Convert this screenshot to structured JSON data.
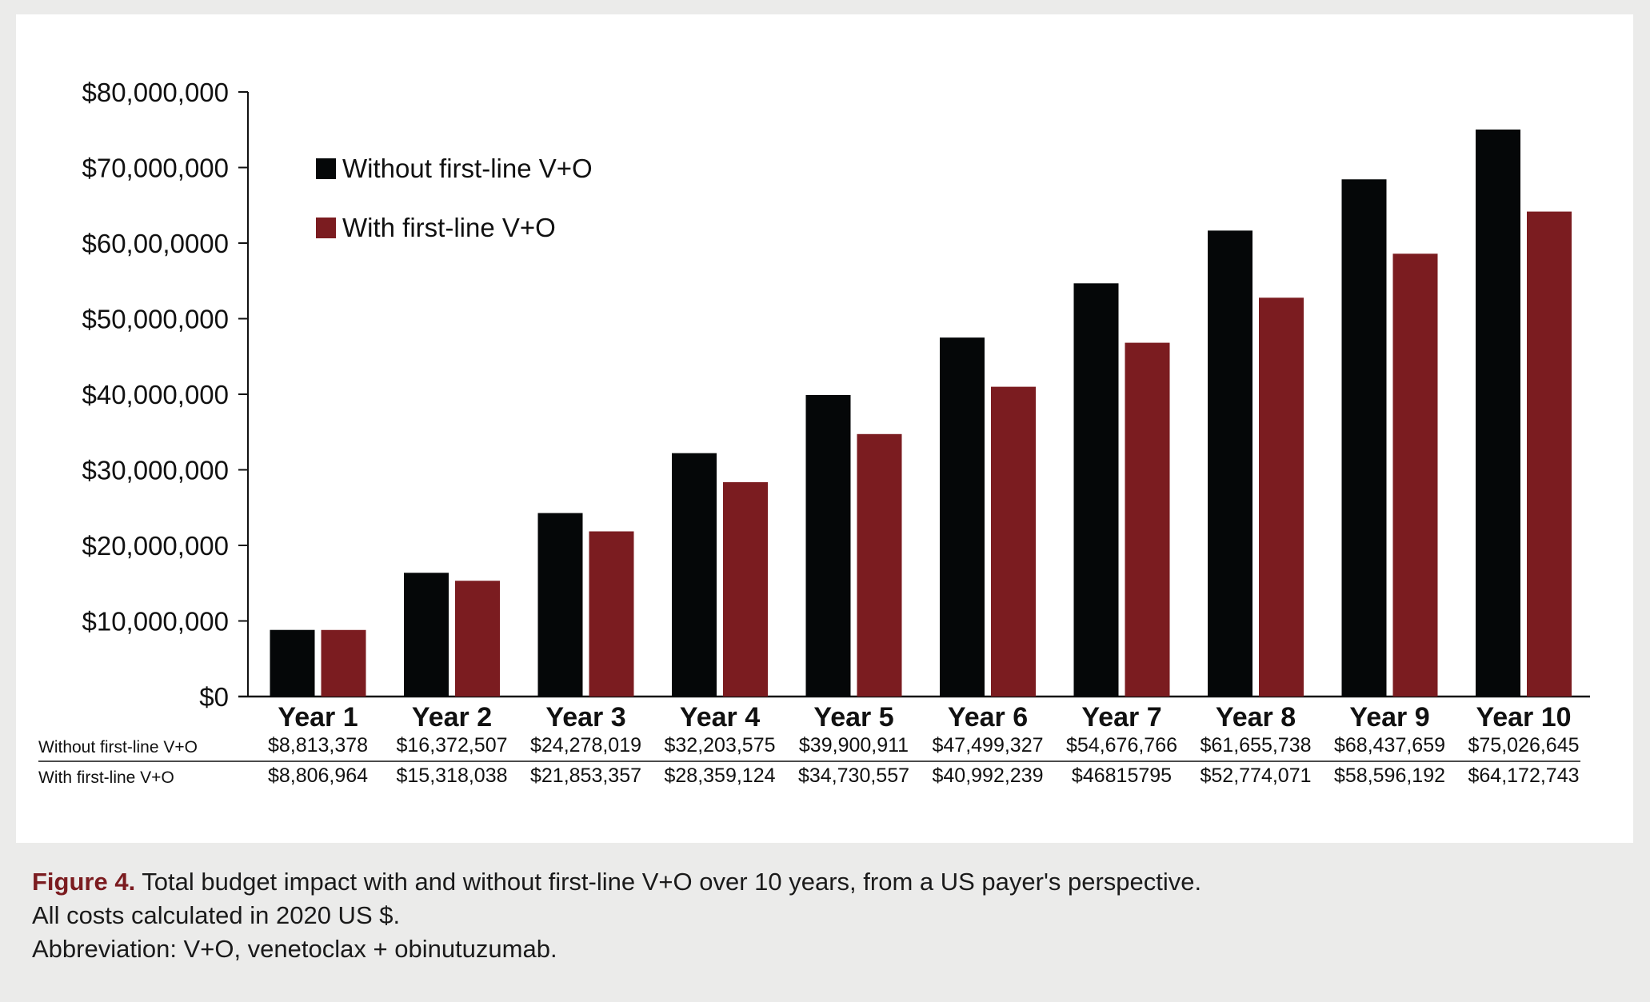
{
  "chart_data": {
    "type": "bar",
    "categories": [
      "Year 1",
      "Year 2",
      "Year 3",
      "Year 4",
      "Year 5",
      "Year 6",
      "Year 7",
      "Year 8",
      "Year 9",
      "Year 10"
    ],
    "series": [
      {
        "name": "Without first-line V+O",
        "color": "#050708",
        "values": [
          8813378,
          16372507,
          24278019,
          32203575,
          39900911,
          47499327,
          54676766,
          61655738,
          68437659,
          75026645
        ],
        "labels": [
          "$8,813,378",
          "$16,372,507",
          "$24,278,019",
          "$32,203,575",
          "$39,900,911",
          "$47,499,327",
          "$54,676,766",
          "$61,655,738",
          "$68,437,659",
          "$75,026,645"
        ]
      },
      {
        "name": "With first-line V+O",
        "color": "#7b1c20",
        "values": [
          8806964,
          15318038,
          21853357,
          28359124,
          34730557,
          40992239,
          46815795,
          52774071,
          58596192,
          64172743
        ],
        "labels": [
          "$8,806,964",
          "$15,318,038",
          "$21,853,357",
          "$28,359,124",
          "$34,730,557",
          "$40,992,239",
          "$46815795",
          "$52,774,071",
          "$58,596,192",
          "$64,172,743"
        ]
      }
    ],
    "yticks": [
      {
        "value": 0,
        "label": "$0"
      },
      {
        "value": 10000000,
        "label": "$10,000,000"
      },
      {
        "value": 20000000,
        "label": "$20,000,000"
      },
      {
        "value": 30000000,
        "label": "$30,000,000"
      },
      {
        "value": 40000000,
        "label": "$40,000,000"
      },
      {
        "value": 50000000,
        "label": "$50,000,000"
      },
      {
        "value": 60000000,
        "label": "$60,00,0000"
      },
      {
        "value": 70000000,
        "label": "$70,000,000"
      },
      {
        "value": 80000000,
        "label": "$80,000,000"
      }
    ],
    "ylim": [
      0,
      80000000
    ],
    "title": "",
    "xlabel": "",
    "ylabel": "",
    "grid": false,
    "legend_position": "top-left"
  },
  "caption": {
    "figure_label": "Figure 4.",
    "text": " Total budget impact with and without first-line V+O over 10 years, from a US payer's perspective.",
    "line2": "All costs calculated in 2020 US $.",
    "line3": "Abbreviation: V+O, venetoclax + obinutuzumab."
  }
}
